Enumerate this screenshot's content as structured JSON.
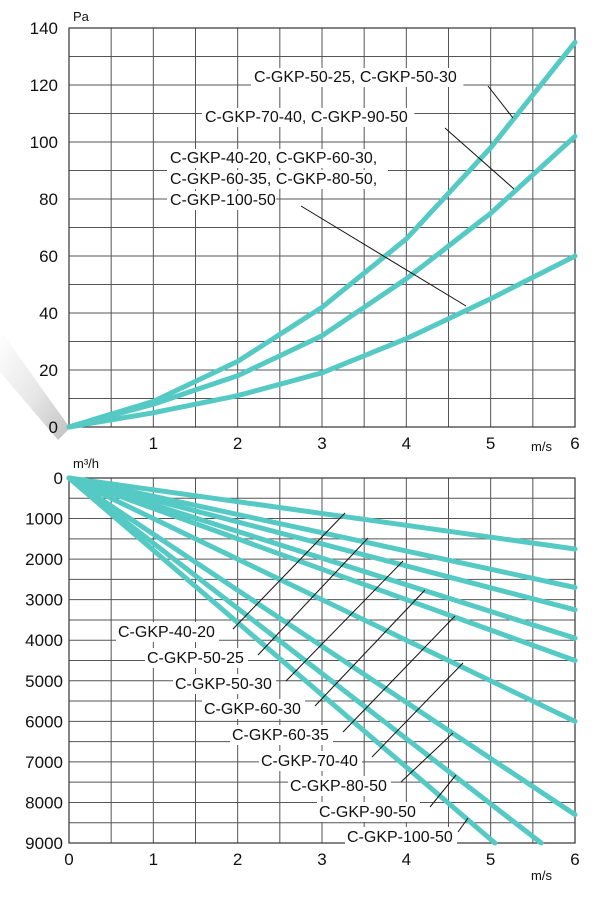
{
  "colors": {
    "curve": "#55c9c3",
    "grid": "#555555",
    "text": "#111111"
  },
  "chart_data": [
    {
      "type": "line",
      "title": "",
      "ylabel": "Pa",
      "xlabel": "m/s",
      "x_ticks": [
        "1",
        "2",
        "3",
        "4",
        "5",
        "6"
      ],
      "y_ticks": [
        "0",
        "20",
        "40",
        "60",
        "80",
        "100",
        "120",
        "140"
      ],
      "xlim": [
        0,
        6
      ],
      "ylim": [
        0,
        140
      ],
      "grid": true,
      "series": [
        {
          "name": "C-GKP-50-25, C-GKP-50-30",
          "x": [
            0,
            1,
            2,
            3,
            4,
            5,
            6
          ],
          "y": [
            0,
            9,
            23,
            42,
            66,
            98,
            135
          ],
          "label_lines": [
            "C-GKP-50-25, C-GKP-50-30"
          ]
        },
        {
          "name": "C-GKP-70-40, C-GKP-90-50",
          "x": [
            0,
            1,
            2,
            3,
            4,
            5,
            6
          ],
          "y": [
            0,
            8,
            18,
            32,
            52,
            75,
            102
          ],
          "label_lines": [
            "C-GKP-70-40, C-GKP-90-50"
          ]
        },
        {
          "name": "C-GKP-40-20, C-GKP-60-30, C-GKP-60-35, C-GKP-80-50, C-GKP-100-50",
          "x": [
            0,
            1,
            2,
            3,
            4,
            5,
            6
          ],
          "y": [
            0,
            5,
            11,
            19,
            31,
            45,
            60
          ],
          "label_lines": [
            "C-GKP-40-20, C-GKP-60-30,",
            "C-GKP-60-35, C-GKP-80-50,",
            "C-GKP-100-50"
          ]
        }
      ]
    },
    {
      "type": "line",
      "title": "",
      "ylabel": "m³/h",
      "xlabel": "m/s",
      "x_ticks": [
        "0",
        "1",
        "2",
        "3",
        "4",
        "5",
        "6"
      ],
      "y_ticks": [
        "0",
        "1000",
        "2000",
        "3000",
        "4000",
        "5000",
        "6000",
        "7000",
        "8000",
        "9000"
      ],
      "xlim": [
        0,
        6
      ],
      "ylim": [
        0,
        9000
      ],
      "y_inverted": true,
      "grid": true,
      "series": [
        {
          "name": "C-GKP-40-20",
          "x": [
            0,
            6
          ],
          "y": [
            0,
            1750
          ]
        },
        {
          "name": "C-GKP-50-25",
          "x": [
            0,
            6
          ],
          "y": [
            0,
            2700
          ]
        },
        {
          "name": "C-GKP-50-30",
          "x": [
            0,
            6
          ],
          "y": [
            0,
            3250
          ]
        },
        {
          "name": "C-GKP-60-30",
          "x": [
            0,
            6
          ],
          "y": [
            0,
            3950
          ]
        },
        {
          "name": "C-GKP-60-35",
          "x": [
            0,
            6
          ],
          "y": [
            0,
            4500
          ]
        },
        {
          "name": "C-GKP-70-40",
          "x": [
            0,
            6
          ],
          "y": [
            0,
            6000
          ]
        },
        {
          "name": "C-GKP-80-50",
          "x": [
            0,
            6
          ],
          "y": [
            0,
            8300
          ]
        },
        {
          "name": "C-GKP-90-50",
          "x": [
            0,
            5.6
          ],
          "y": [
            0,
            9000
          ]
        },
        {
          "name": "C-GKP-100-50",
          "x": [
            0,
            5.05
          ],
          "y": [
            0,
            9000
          ]
        }
      ]
    }
  ]
}
